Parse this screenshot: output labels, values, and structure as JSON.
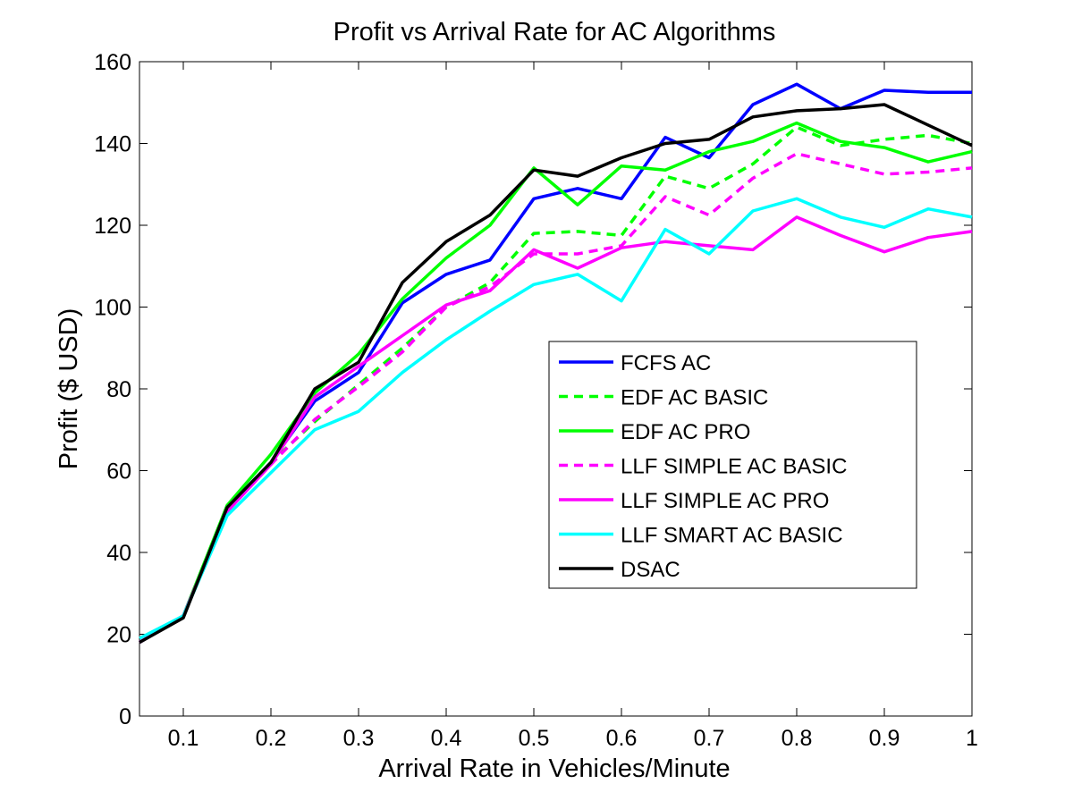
{
  "chart_data": {
    "type": "line",
    "title": "Profit vs Arrival Rate for AC Algorithms",
    "xlabel": "Arrival Rate in Vehicles/Minute",
    "ylabel": "Profit ($ USD)",
    "xlim": [
      0.05,
      1
    ],
    "ylim": [
      0,
      160
    ],
    "xticks": [
      0.1,
      0.2,
      0.3,
      0.4,
      0.5,
      0.6,
      0.7,
      0.8,
      0.9,
      1
    ],
    "xtick_labels": [
      "0.1",
      "0.2",
      "0.3",
      "0.4",
      "0.5",
      "0.6",
      "0.7",
      "0.8",
      "0.9",
      "1"
    ],
    "yticks": [
      0,
      20,
      40,
      60,
      80,
      100,
      120,
      140,
      160
    ],
    "ytick_labels": [
      "0",
      "20",
      "40",
      "60",
      "80",
      "100",
      "120",
      "140",
      "160"
    ],
    "grid": false,
    "legend_position": "center-right",
    "x": [
      0.05,
      0.1,
      0.15,
      0.2,
      0.25,
      0.3,
      0.35,
      0.4,
      0.45,
      0.5,
      0.55,
      0.6,
      0.65,
      0.7,
      0.75,
      0.8,
      0.85,
      0.9,
      0.95,
      1
    ],
    "series": [
      {
        "name": "FCFS AC",
        "color": "#0000ff",
        "dash": "solid",
        "values": [
          18,
          24.5,
          51,
          62,
          77,
          84,
          101,
          108,
          111.5,
          126.5,
          129,
          126.5,
          141.5,
          136.5,
          149.5,
          154.5,
          148.5,
          153,
          152.5,
          152.5
        ]
      },
      {
        "name": "EDF AC BASIC",
        "color": "#00ff00",
        "dash": "dashed",
        "values": [
          18,
          24.5,
          50,
          62,
          72,
          81,
          90,
          100,
          106,
          118,
          118.5,
          117.5,
          132,
          129,
          135,
          144,
          139.5,
          141,
          142,
          140
        ]
      },
      {
        "name": "EDF AC PRO",
        "color": "#00ff00",
        "dash": "solid",
        "values": [
          18,
          24.5,
          51.5,
          64,
          79,
          88.5,
          102,
          112,
          120,
          134,
          125,
          134.5,
          133.5,
          138,
          140.5,
          145,
          140.5,
          139,
          135.5,
          138
        ]
      },
      {
        "name": "LLF SIMPLE AC BASIC",
        "color": "#ff00ff",
        "dash": "dashed",
        "values": [
          18,
          24.5,
          50,
          61.5,
          72.5,
          80.5,
          89,
          100,
          105,
          113,
          113,
          115,
          127,
          122.5,
          131.5,
          137.5,
          135,
          132.5,
          133,
          134
        ]
      },
      {
        "name": "LLF SIMPLE AC PRO",
        "color": "#ff00ff",
        "dash": "solid",
        "values": [
          18,
          24.5,
          50,
          61.5,
          78,
          85.5,
          93,
          100.5,
          104,
          114,
          109.5,
          114.5,
          116,
          115,
          114,
          122,
          117.5,
          113.5,
          117,
          118.5
        ]
      },
      {
        "name": "LLF SMART AC BASIC",
        "color": "#00ffff",
        "dash": "solid",
        "values": [
          19,
          24.5,
          49,
          59.5,
          70,
          74.5,
          84,
          92,
          99,
          105.5,
          108,
          101.5,
          119,
          113,
          123.5,
          126.5,
          122,
          119.5,
          124,
          122
        ]
      },
      {
        "name": "DSAC",
        "color": "#000000",
        "dash": "solid",
        "values": [
          18,
          24,
          51,
          62,
          80,
          86.5,
          106,
          116,
          122.5,
          133.5,
          132,
          136.5,
          140,
          141,
          146.5,
          148,
          148.5,
          149.5,
          144.5,
          139.5
        ]
      }
    ]
  }
}
